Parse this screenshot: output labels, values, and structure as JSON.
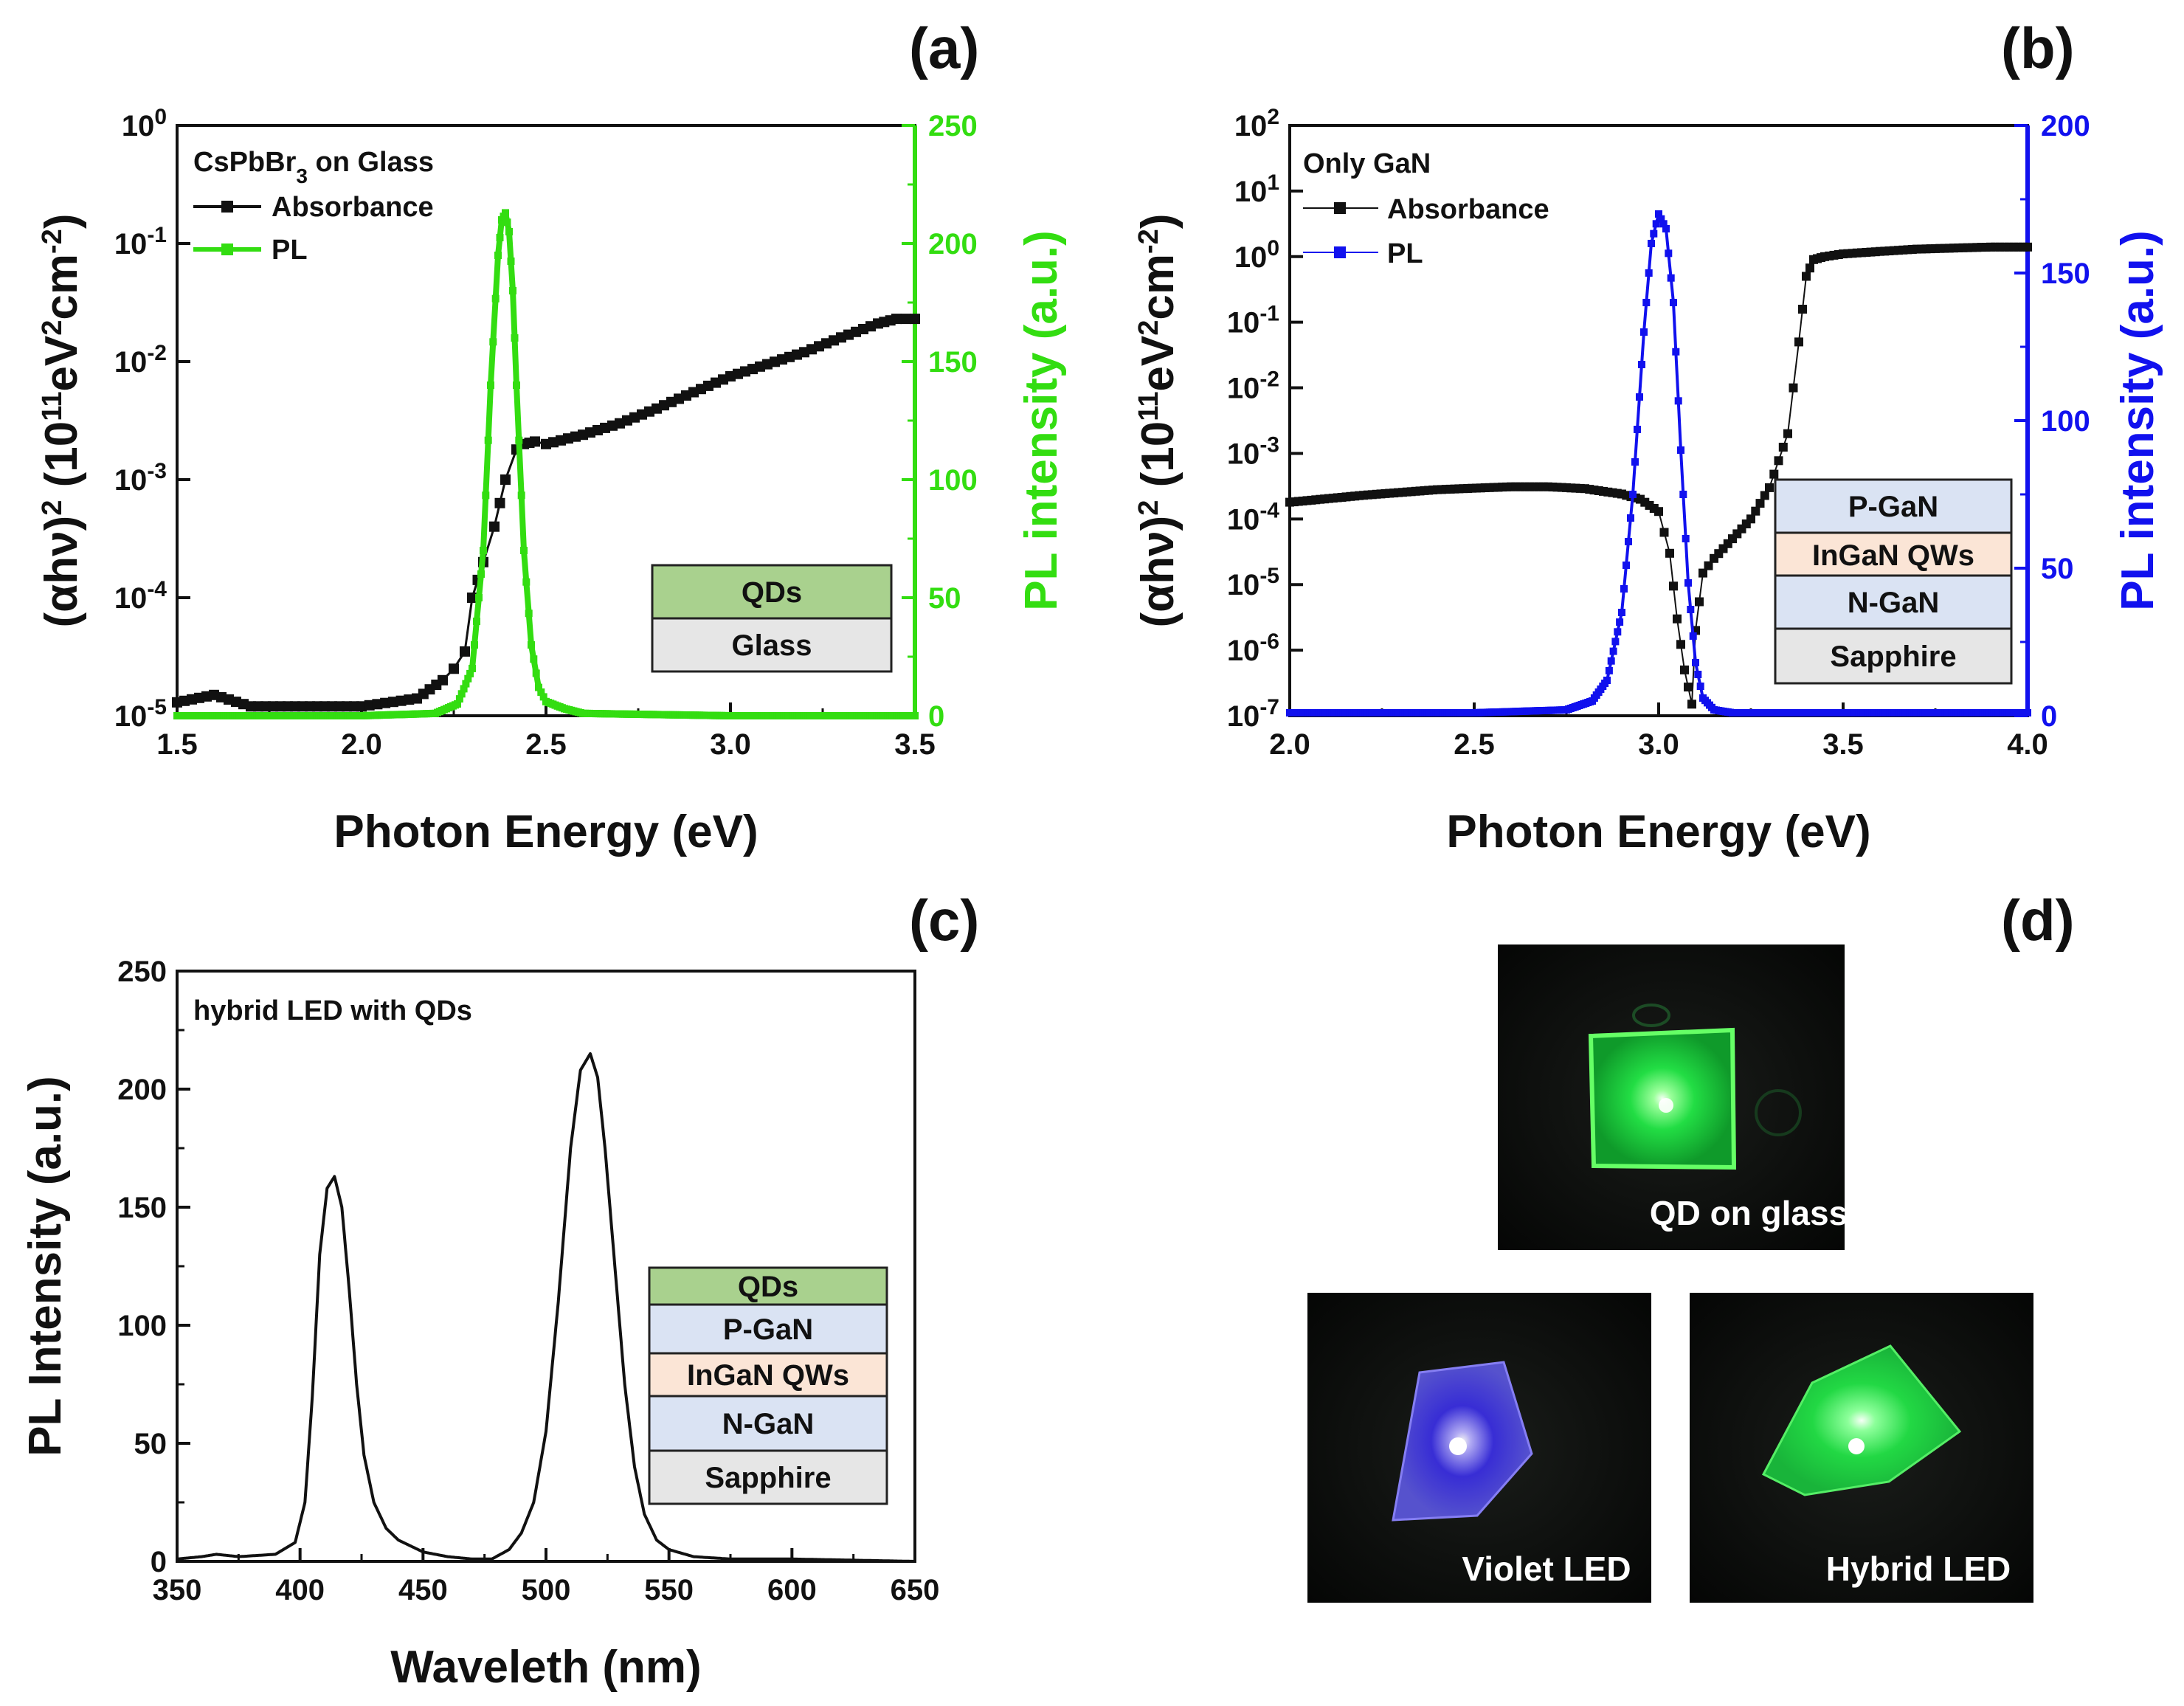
{
  "colors": {
    "absorbance": "#111111",
    "pl_green": "#33dd11",
    "pl_blue": "#1111ee",
    "qds_layer": "#a9d18e",
    "glass_layer": "#e6e6e6",
    "gan_layer": "#dae3f3",
    "ingan_layer": "#fbe5d6",
    "sapphire_layer": "#e6e6e6"
  },
  "chart_data": [
    {
      "panel": "(a)",
      "type": "line",
      "legend_title": "CsPbBr3 on Glass",
      "legend_title_parts": [
        "CsPbBr",
        "3",
        " on Glass"
      ],
      "xlabel": "Photon Energy (eV)",
      "ylabel_left": "(αhν)² (10¹¹eV²cm⁻²)",
      "ylabel_left_parts": [
        "(",
        "α",
        "hν)",
        "2",
        " (10",
        "11",
        "eV",
        "2",
        "cm",
        "-2",
        ")"
      ],
      "ylabel_right": "PL intensity (a.u.)",
      "xlim": [
        1.5,
        3.5
      ],
      "ylim_left_log10": [
        -5,
        0
      ],
      "ylim_right": [
        0,
        250
      ],
      "x_ticks": [
        "1.5",
        "2.0",
        "2.5",
        "3.0",
        "3.5"
      ],
      "y_left_ticks": [
        {
          "base": "10",
          "exp": "0"
        },
        {
          "base": "10",
          "exp": "-1"
        },
        {
          "base": "10",
          "exp": "-2"
        },
        {
          "base": "10",
          "exp": "-3"
        },
        {
          "base": "10",
          "exp": "-4"
        },
        {
          "base": "10",
          "exp": "-5"
        }
      ],
      "y_right_ticks": [
        "250",
        "200",
        "150",
        "100",
        "50",
        "0"
      ],
      "series": [
        {
          "name": "Absorbance",
          "axis": "left",
          "x": [
            1.5,
            1.6,
            1.7,
            2.0,
            2.15,
            2.22,
            2.25,
            2.28,
            2.3,
            2.33,
            2.36,
            2.39,
            2.42,
            2.44,
            2.47,
            2.5,
            2.6,
            2.7,
            2.8,
            2.9,
            3.0,
            3.1,
            3.2,
            3.3,
            3.4,
            3.45,
            3.5
          ],
          "y": [
            1.3e-05,
            1.5e-05,
            1.2e-05,
            1.2e-05,
            1.4e-05,
            2e-05,
            2.5e-05,
            3.5e-05,
            0.0001,
            0.0002,
            0.0004,
            0.001,
            0.0018,
            0.002,
            0.0021,
            0.002,
            0.0024,
            0.003,
            0.004,
            0.0055,
            0.0075,
            0.0095,
            0.012,
            0.016,
            0.021,
            0.023,
            0.023
          ]
        },
        {
          "name": "PL",
          "axis": "right",
          "x": [
            1.5,
            2.0,
            2.2,
            2.26,
            2.3,
            2.33,
            2.35,
            2.37,
            2.38,
            2.39,
            2.4,
            2.41,
            2.42,
            2.44,
            2.46,
            2.48,
            2.5,
            2.55,
            2.6,
            3.0,
            3.5
          ],
          "y": [
            0,
            0,
            1,
            5,
            20,
            70,
            140,
            195,
            210,
            213,
            205,
            180,
            140,
            70,
            30,
            12,
            6,
            3,
            1,
            0,
            0
          ]
        }
      ],
      "stack_layers": [
        "QDs",
        "Glass"
      ]
    },
    {
      "panel": "(b)",
      "type": "line",
      "legend_title": "Only GaN",
      "xlabel": "Photon Energy (eV)",
      "ylabel_left_parts": [
        "(",
        "α",
        "hν)",
        "2",
        " (10",
        "11",
        "eV",
        "2",
        "cm",
        "-2",
        ")"
      ],
      "ylabel_right": "PL intensity (a.u.)",
      "xlim": [
        2.0,
        4.0
      ],
      "ylim_left_log10": [
        -7,
        2
      ],
      "ylim_right": [
        0,
        200
      ],
      "x_ticks": [
        "2.0",
        "2.5",
        "3.0",
        "3.5",
        "4.0"
      ],
      "y_left_ticks": [
        {
          "base": "10",
          "exp": "2"
        },
        {
          "base": "10",
          "exp": "1"
        },
        {
          "base": "10",
          "exp": "0"
        },
        {
          "base": "10",
          "exp": "-1"
        },
        {
          "base": "10",
          "exp": "-2"
        },
        {
          "base": "10",
          "exp": "-3"
        },
        {
          "base": "10",
          "exp": "-4"
        },
        {
          "base": "10",
          "exp": "-5"
        },
        {
          "base": "10",
          "exp": "-6"
        },
        {
          "base": "10",
          "exp": "-7"
        }
      ],
      "y_right_ticks": [
        "200",
        "150",
        "100",
        "50",
        "0"
      ],
      "series": [
        {
          "name": "Absorbance",
          "axis": "left",
          "x": [
            2.0,
            2.2,
            2.4,
            2.6,
            2.7,
            2.8,
            2.9,
            2.95,
            3.0,
            3.03,
            3.05,
            3.07,
            3.09,
            3.1,
            3.12,
            3.15,
            3.2,
            3.25,
            3.3,
            3.35,
            3.38,
            3.4,
            3.42,
            3.45,
            3.5,
            3.6,
            3.7,
            3.8,
            3.9,
            4.0
          ],
          "y": [
            0.00018,
            0.00023,
            0.00028,
            0.00031,
            0.00031,
            0.00029,
            0.00024,
            0.0002,
            0.00013,
            3e-05,
            3e-06,
            5e-07,
            1.5e-07,
            2e-06,
            1.5e-05,
            2.5e-05,
            5e-05,
            0.0001,
            0.0003,
            0.002,
            0.05,
            0.5,
            0.9,
            1.0,
            1.1,
            1.2,
            1.3,
            1.35,
            1.4,
            1.4
          ]
        },
        {
          "name": "PL",
          "axis": "right",
          "x": [
            2.0,
            2.5,
            2.75,
            2.82,
            2.86,
            2.9,
            2.93,
            2.96,
            2.98,
            3.0,
            3.02,
            3.04,
            3.06,
            3.08,
            3.1,
            3.12,
            3.15,
            3.2,
            3.5,
            4.0
          ],
          "y": [
            1,
            1,
            2,
            5,
            12,
            35,
            75,
            130,
            160,
            170,
            165,
            140,
            90,
            45,
            18,
            6,
            2,
            1,
            1,
            1
          ]
        }
      ],
      "stack_layers": [
        "P-GaN",
        "InGaN QWs",
        "N-GaN",
        "Sapphire"
      ]
    },
    {
      "panel": "(c)",
      "type": "line",
      "legend_title": "hybrid LED with QDs",
      "xlabel": "Waveleth (nm)",
      "ylabel": "PL Intensity (a.u.)",
      "xlim": [
        350,
        650
      ],
      "ylim": [
        0,
        250
      ],
      "x_ticks": [
        "350",
        "400",
        "450",
        "500",
        "550",
        "600",
        "650"
      ],
      "y_ticks": [
        "250",
        "200",
        "150",
        "100",
        "50",
        "0"
      ],
      "series": [
        {
          "name": "hybrid LED with QDs",
          "x": [
            350,
            360,
            366,
            375,
            390,
            398,
            402,
            405,
            408,
            411,
            414,
            417,
            420,
            423,
            426,
            430,
            435,
            440,
            450,
            460,
            470,
            478,
            485,
            490,
            495,
            500,
            505,
            510,
            514,
            518,
            521,
            524,
            528,
            532,
            536,
            540,
            545,
            550,
            560,
            575,
            600,
            650
          ],
          "y": [
            1,
            2,
            3,
            2,
            3,
            8,
            25,
            70,
            130,
            158,
            163,
            150,
            115,
            75,
            45,
            25,
            14,
            9,
            4,
            2,
            1,
            1,
            5,
            12,
            25,
            55,
            110,
            175,
            208,
            215,
            205,
            175,
            125,
            75,
            40,
            20,
            9,
            5,
            2,
            1,
            1,
            0
          ]
        }
      ],
      "stack_layers": [
        "QDs",
        "P-GaN",
        "InGaN QWs",
        "N-GaN",
        "Sapphire"
      ]
    }
  ],
  "panels": {
    "a": {
      "label": "(a)"
    },
    "b": {
      "label": "(b)"
    },
    "c": {
      "label": "(c)"
    },
    "d": {
      "label": "(d)",
      "photos": [
        {
          "name": "qd-on-glass",
          "caption": "QD on glass"
        },
        {
          "name": "violet-led",
          "caption": "Violet LED"
        },
        {
          "name": "hybrid-led",
          "caption": "Hybrid LED"
        }
      ]
    }
  }
}
